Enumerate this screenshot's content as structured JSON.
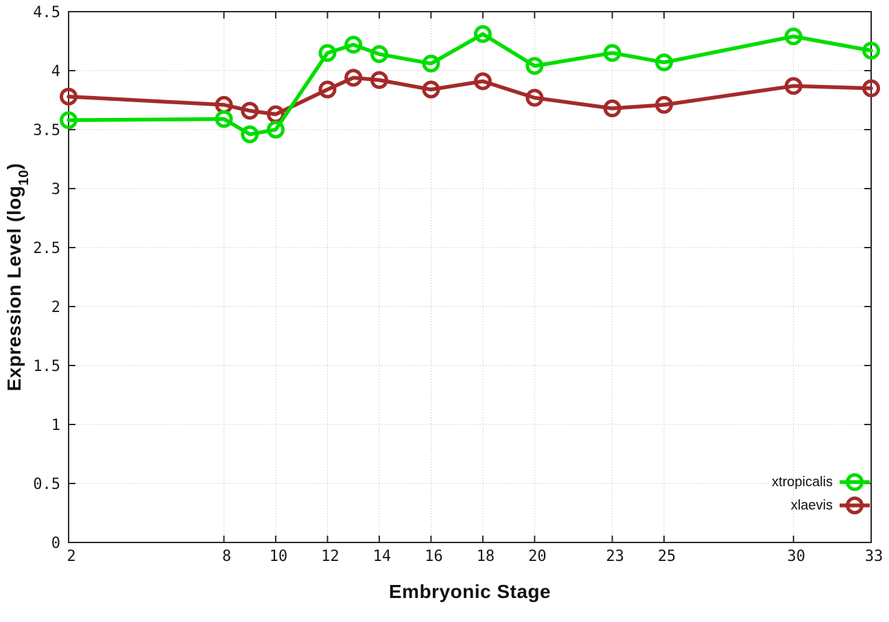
{
  "chart_data": {
    "type": "line",
    "title": "",
    "xlabel": "Embryonic Stage",
    "ylabel": {
      "main": "Expression Level (log",
      "sub": "10",
      "suffix": ")"
    },
    "x": [
      2,
      8,
      9,
      10,
      12,
      13,
      14,
      16,
      18,
      20,
      23,
      25,
      30,
      33
    ],
    "x_tick_labels": [
      2,
      8,
      10,
      12,
      14,
      16,
      18,
      20,
      23,
      25,
      30,
      33
    ],
    "y_tick_labels": [
      0,
      0.5,
      1,
      1.5,
      2,
      2.5,
      3,
      3.5,
      4,
      4.5
    ],
    "xlim": [
      2,
      33
    ],
    "ylim": [
      0,
      4.5
    ],
    "grid": true,
    "legend_position": "inside-bottom-right",
    "series": [
      {
        "name": "xtropicalis",
        "color": "#00dd00",
        "marker": "open-circle",
        "values": [
          3.58,
          3.59,
          3.46,
          3.5,
          4.15,
          4.22,
          4.14,
          4.06,
          4.31,
          4.04,
          4.15,
          4.07,
          4.29,
          4.17
        ]
      },
      {
        "name": "xlaevis",
        "color": "#a42a2a",
        "marker": "open-circle",
        "values": [
          3.78,
          3.71,
          3.66,
          3.63,
          3.84,
          3.94,
          3.92,
          3.84,
          3.91,
          3.77,
          3.68,
          3.71,
          3.87,
          3.85
        ]
      }
    ],
    "style": {
      "grid_color": "#b5b5b5",
      "axis_color": "#2a2a2a",
      "background": "#ffffff"
    }
  }
}
